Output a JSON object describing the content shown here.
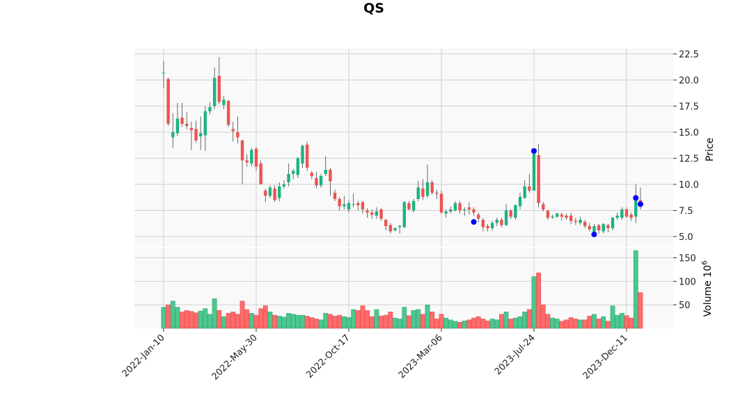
{
  "chart_data": {
    "type": "candlestick",
    "title": "QS",
    "price_axis": {
      "label": "Price",
      "ylim": [
        4.0,
        23.0
      ],
      "ticks": [
        5.0,
        7.5,
        10.0,
        12.5,
        15.0,
        17.5,
        20.0,
        22.5
      ]
    },
    "volume_axis": {
      "label": "Volume",
      "multiplier_label": "10",
      "multiplier_exp": "6",
      "ylim": [
        0,
        170
      ],
      "ticks": [
        50,
        100,
        150
      ]
    },
    "x_tick_labels": [
      "2022-Jan-10",
      "2022-May-30",
      "2022-Oct-17",
      "2023-Mar-06",
      "2023-Jul-24",
      "2023-Dec-11"
    ],
    "x_tick_index": [
      0,
      20,
      40,
      60,
      80,
      100
    ],
    "grid": true,
    "up_color": "#26a69a",
    "up_color_alt": "#1db381",
    "down_color": "#ef5350",
    "marker_color": "#0000ff",
    "candles": [
      [
        20.7,
        20.7,
        21.8,
        19.2,
        45
      ],
      [
        20.1,
        15.8,
        20.2,
        15.6,
        50
      ],
      [
        14.5,
        15.0,
        16.8,
        13.5,
        58
      ],
      [
        14.9,
        16.3,
        17.8,
        14.6,
        45
      ],
      [
        16.4,
        15.8,
        17.8,
        15.5,
        35
      ],
      [
        15.8,
        15.6,
        16.9,
        15.3,
        38
      ],
      [
        15.4,
        15.2,
        16.0,
        13.3,
        36
      ],
      [
        15.3,
        14.2,
        16.1,
        14.0,
        33
      ],
      [
        14.6,
        14.9,
        16.5,
        13.3,
        37
      ],
      [
        14.7,
        17.0,
        17.5,
        13.2,
        42
      ],
      [
        17.0,
        17.4,
        17.9,
        16.7,
        30
      ],
      [
        17.5,
        20.2,
        21.2,
        17.2,
        63
      ],
      [
        20.4,
        17.9,
        22.2,
        17.7,
        38
      ],
      [
        17.6,
        18.1,
        18.5,
        17.2,
        25
      ],
      [
        18.0,
        15.7,
        18.1,
        15.5,
        32
      ],
      [
        15.3,
        15.1,
        16.0,
        14.1,
        35
      ],
      [
        15.0,
        14.5,
        16.5,
        13.9,
        30
      ],
      [
        14.2,
        12.3,
        14.3,
        10.0,
        58
      ],
      [
        12.3,
        12.1,
        12.9,
        11.7,
        40
      ],
      [
        12.0,
        13.3,
        13.5,
        11.7,
        32
      ],
      [
        13.4,
        11.7,
        13.6,
        11.3,
        28
      ],
      [
        12.0,
        10.0,
        12.3,
        10.0,
        42
      ],
      [
        9.4,
        8.9,
        9.6,
        8.3,
        48
      ],
      [
        8.9,
        9.7,
        9.9,
        8.7,
        35
      ],
      [
        9.6,
        8.5,
        9.9,
        8.3,
        28
      ],
      [
        8.7,
        9.8,
        10.2,
        8.4,
        26
      ],
      [
        9.8,
        10.0,
        10.4,
        9.6,
        24
      ],
      [
        10.2,
        11.0,
        12.0,
        9.8,
        32
      ],
      [
        11.0,
        11.3,
        11.5,
        10.5,
        30
      ],
      [
        10.9,
        12.5,
        12.6,
        10.6,
        28
      ],
      [
        12.0,
        13.7,
        13.8,
        11.6,
        28
      ],
      [
        13.8,
        11.6,
        14.1,
        11.3,
        26
      ],
      [
        11.1,
        10.8,
        11.3,
        10.5,
        23
      ],
      [
        10.6,
        9.9,
        11.2,
        9.6,
        20
      ],
      [
        9.9,
        10.8,
        11.0,
        9.7,
        18
      ],
      [
        11.0,
        11.4,
        12.7,
        10.8,
        32
      ],
      [
        11.4,
        10.3,
        11.6,
        8.9,
        30
      ],
      [
        9.2,
        8.6,
        9.5,
        8.4,
        26
      ],
      [
        8.6,
        7.9,
        8.8,
        7.5,
        28
      ],
      [
        7.9,
        8.1,
        8.9,
        7.6,
        25
      ],
      [
        7.6,
        8.2,
        8.5,
        7.3,
        23
      ],
      [
        8.1,
        8.1,
        9.1,
        7.8,
        40
      ],
      [
        8.2,
        8.0,
        8.4,
        7.5,
        38
      ],
      [
        8.3,
        7.6,
        8.4,
        7.2,
        48
      ],
      [
        7.5,
        7.3,
        7.7,
        6.8,
        38
      ],
      [
        7.3,
        7.1,
        7.6,
        6.7,
        25
      ],
      [
        7.0,
        7.4,
        7.8,
        6.7,
        40
      ],
      [
        7.6,
        6.7,
        7.7,
        6.5,
        26
      ],
      [
        6.6,
        6.0,
        6.7,
        5.6,
        28
      ],
      [
        6.1,
        5.5,
        6.3,
        5.3,
        35
      ],
      [
        5.6,
        5.8,
        5.9,
        5.5,
        22
      ],
      [
        5.9,
        6.0,
        6.1,
        5.3,
        20
      ],
      [
        5.9,
        8.3,
        8.4,
        5.8,
        45
      ],
      [
        8.2,
        7.6,
        8.4,
        7.5,
        27
      ],
      [
        7.5,
        8.4,
        8.6,
        7.3,
        38
      ],
      [
        8.6,
        9.7,
        10.3,
        8.4,
        40
      ],
      [
        9.6,
        8.8,
        10.5,
        8.5,
        30
      ],
      [
        8.9,
        10.2,
        11.9,
        8.7,
        50
      ],
      [
        10.2,
        9.2,
        10.4,
        9.0,
        35
      ],
      [
        9.2,
        9.1,
        9.5,
        8.6,
        20
      ],
      [
        9.1,
        7.3,
        9.4,
        7.2,
        30
      ],
      [
        7.2,
        7.4,
        7.6,
        6.8,
        22
      ],
      [
        7.4,
        7.6,
        7.9,
        7.2,
        18
      ],
      [
        7.5,
        8.2,
        8.4,
        7.4,
        15
      ],
      [
        8.2,
        7.5,
        8.4,
        7.2,
        13
      ],
      [
        7.5,
        7.6,
        7.8,
        7.0,
        16
      ],
      [
        7.8,
        7.6,
        8.3,
        7.1,
        18
      ],
      [
        7.6,
        7.3,
        7.8,
        7.0,
        22
      ],
      [
        7.1,
        6.7,
        7.3,
        6.4,
        25
      ],
      [
        6.6,
        5.9,
        6.8,
        5.5,
        20
      ],
      [
        6.0,
        5.8,
        6.2,
        5.5,
        16
      ],
      [
        5.8,
        6.3,
        6.5,
        5.6,
        20
      ],
      [
        6.3,
        6.6,
        6.8,
        6.0,
        18
      ],
      [
        6.6,
        6.1,
        6.8,
        5.9,
        30
      ],
      [
        6.1,
        7.5,
        8.1,
        6.0,
        35
      ],
      [
        7.5,
        6.9,
        7.6,
        6.7,
        20
      ],
      [
        6.8,
        8.0,
        8.1,
        6.6,
        22
      ],
      [
        7.9,
        8.8,
        9.2,
        7.6,
        25
      ],
      [
        8.7,
        9.8,
        10.4,
        8.6,
        35
      ],
      [
        9.8,
        9.4,
        11.0,
        9.2,
        40
      ],
      [
        9.4,
        13.2,
        13.3,
        9.4,
        110
      ],
      [
        12.8,
        8.2,
        13.9,
        7.8,
        118
      ],
      [
        8.1,
        7.6,
        8.3,
        7.4,
        50
      ],
      [
        7.5,
        6.8,
        7.5,
        6.6,
        30
      ],
      [
        6.8,
        6.9,
        7.1,
        6.7,
        22
      ],
      [
        6.9,
        7.2,
        7.3,
        6.8,
        20
      ],
      [
        7.1,
        6.9,
        7.3,
        6.5,
        15
      ],
      [
        7.0,
        6.8,
        7.2,
        6.6,
        18
      ],
      [
        7.0,
        6.5,
        7.3,
        6.2,
        23
      ],
      [
        6.5,
        6.4,
        6.8,
        6.1,
        20
      ],
      [
        6.3,
        6.6,
        6.9,
        6.1,
        18
      ],
      [
        6.4,
        6.0,
        6.6,
        5.8,
        18
      ],
      [
        6.0,
        5.7,
        6.3,
        5.5,
        26
      ],
      [
        5.4,
        6.0,
        6.2,
        5.1,
        30
      ],
      [
        6.1,
        5.6,
        6.2,
        5.3,
        20
      ],
      [
        5.5,
        6.2,
        6.3,
        5.3,
        25
      ],
      [
        6.1,
        5.8,
        6.2,
        5.4,
        15
      ],
      [
        5.8,
        6.8,
        6.9,
        5.6,
        48
      ],
      [
        6.8,
        7.0,
        7.3,
        6.6,
        28
      ],
      [
        6.8,
        7.6,
        7.8,
        6.6,
        32
      ],
      [
        7.6,
        6.9,
        7.8,
        6.8,
        27
      ],
      [
        7.1,
        6.8,
        7.3,
        6.5,
        22
      ],
      [
        6.9,
        8.6,
        10.0,
        6.3,
        165
      ],
      [
        8.5,
        7.9,
        9.7,
        7.6,
        76
      ]
    ],
    "markers": [
      {
        "index": 67,
        "price": 6.4
      },
      {
        "index": 80,
        "price": 13.2
      },
      {
        "index": 93,
        "price": 5.2
      },
      {
        "index": 102,
        "price": 8.7
      },
      {
        "index": 103,
        "price": 8.1
      }
    ]
  }
}
